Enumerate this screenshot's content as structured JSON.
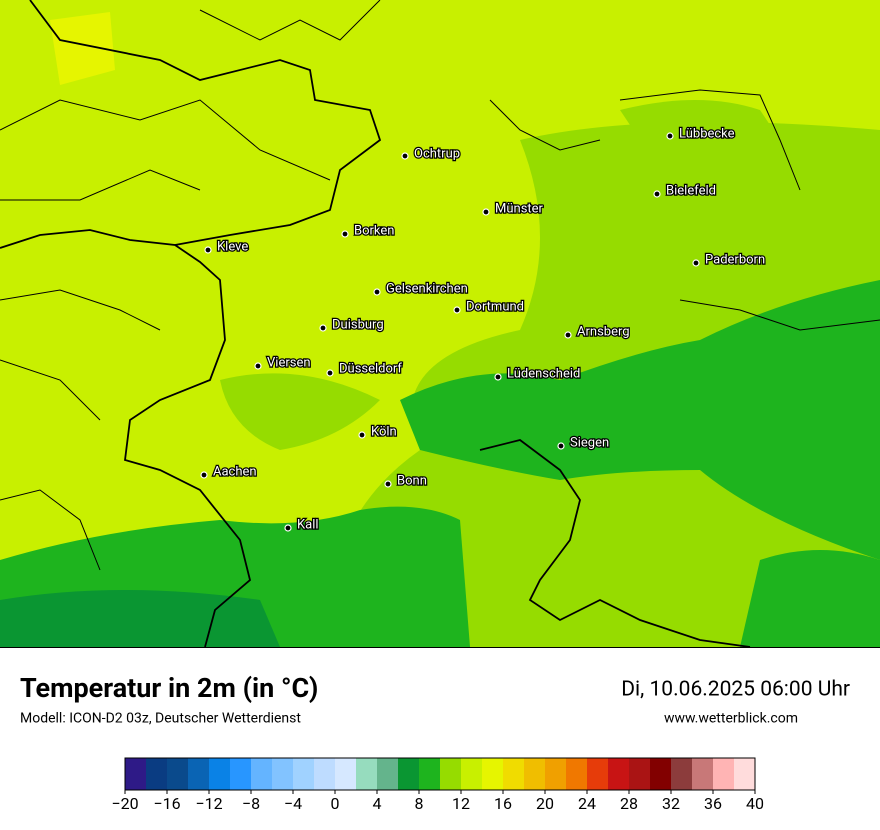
{
  "map": {
    "cities": [
      "Lübbecke",
      "Ochtrup",
      "Bielefeld",
      "Münster",
      "Borken",
      "Kleve",
      "Paderborn",
      "Gelsenkirchen",
      "Dortmund",
      "Duisburg",
      "Arnsberg",
      "Viersen",
      "Düsseldorf",
      "Lüdenscheid",
      "Köln",
      "Siegen",
      "Aachen",
      "Bonn",
      "Kall"
    ]
  },
  "footer": {
    "title": "Temperatur in 2m (in °C)",
    "model": "Modell: ICON-D2 03z, Deutscher Wetterdienst",
    "date": "Di, 10.06.2025 06:00 Uhr",
    "website": "www.wetterblick.com"
  },
  "colorbar": {
    "min": -20,
    "max": 40,
    "colors": [
      "#2e1a87",
      "#0a3c82",
      "#0a4a8c",
      "#0a64b4",
      "#0a82e6",
      "#2896ff",
      "#64b4ff",
      "#82c3ff",
      "#a0d2ff",
      "#bedcff",
      "#d6e8ff",
      "#96dcbe",
      "#64b48c",
      "#0a9632",
      "#1eb41e",
      "#96dc00",
      "#c8f000",
      "#e6f500",
      "#f0dc00",
      "#f0be00",
      "#f0a000",
      "#f07800",
      "#e63c0a",
      "#c81414",
      "#aa1414",
      "#820000",
      "#8c3c3c",
      "#c87878",
      "#ffb4b4",
      "#ffdcdc"
    ],
    "ticks": [
      {
        "value": -20,
        "label": "−20"
      },
      {
        "value": -16,
        "label": "−16"
      },
      {
        "value": -12,
        "label": "−12"
      },
      {
        "value": -8,
        "label": "−8"
      },
      {
        "value": -4,
        "label": "−4"
      },
      0,
      4,
      8,
      12,
      16,
      20,
      24,
      28,
      32,
      36,
      40
    ]
  }
}
